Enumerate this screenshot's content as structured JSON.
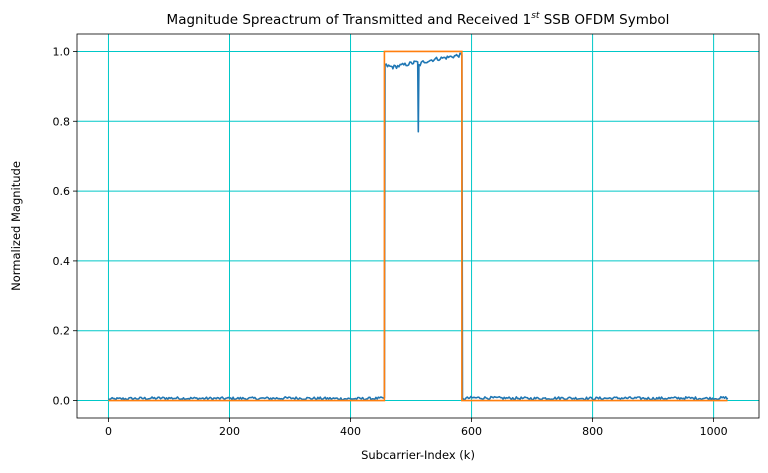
{
  "chart_data": {
    "type": "line",
    "title": {
      "prefix": "Magnitude Spreactrum of Transmitted and Received 1",
      "superscript": "st",
      "suffix": " SSB OFDM Symbol"
    },
    "xlabel": "Subcarrier-Index (k)",
    "ylabel": "Normalized Magnitude",
    "xlim": [
      -52,
      1075
    ],
    "ylim": [
      -0.05,
      1.05
    ],
    "xticks": [
      0,
      200,
      400,
      600,
      800,
      1000
    ],
    "xtick_labels": [
      "0",
      "200",
      "400",
      "600",
      "800",
      "1000"
    ],
    "yticks": [
      0.0,
      0.2,
      0.4,
      0.6,
      0.8,
      1.0
    ],
    "ytick_labels": [
      "0.0",
      "0.2",
      "0.4",
      "0.6",
      "0.8",
      "1.0"
    ],
    "grid": true,
    "grid_color": "#00c8c8",
    "series": [
      {
        "color": "#1f77b4",
        "description_points": [
          [
            0,
            0.004
          ],
          [
            50,
            0.006
          ],
          [
            100,
            0.007
          ],
          [
            150,
            0.006
          ],
          [
            200,
            0.006
          ],
          [
            250,
            0.006
          ],
          [
            300,
            0.007
          ],
          [
            350,
            0.006
          ],
          [
            400,
            0.005
          ],
          [
            450,
            0.006
          ],
          [
            456,
            0.008
          ],
          [
            457,
            0.96
          ],
          [
            470,
            0.955
          ],
          [
            490,
            0.962
          ],
          [
            505,
            0.968
          ],
          [
            511,
            0.97
          ],
          [
            512,
            0.77
          ],
          [
            513,
            0.96
          ],
          [
            520,
            0.97
          ],
          [
            540,
            0.978
          ],
          [
            560,
            0.983
          ],
          [
            575,
            0.988
          ],
          [
            584,
            0.99
          ],
          [
            585,
            0.005
          ],
          [
            600,
            0.008
          ],
          [
            650,
            0.007
          ],
          [
            700,
            0.006
          ],
          [
            750,
            0.007
          ],
          [
            800,
            0.006
          ],
          [
            850,
            0.007
          ],
          [
            900,
            0.006
          ],
          [
            950,
            0.007
          ],
          [
            1000,
            0.006
          ],
          [
            1023,
            0.008
          ]
        ],
        "noise_amplitude": 0.008
      },
      {
        "color": "#ff7f0e",
        "x": [
          0,
          456,
          456,
          584,
          584,
          1023
        ],
        "y": [
          0,
          0,
          1,
          1,
          0,
          0
        ]
      }
    ]
  }
}
